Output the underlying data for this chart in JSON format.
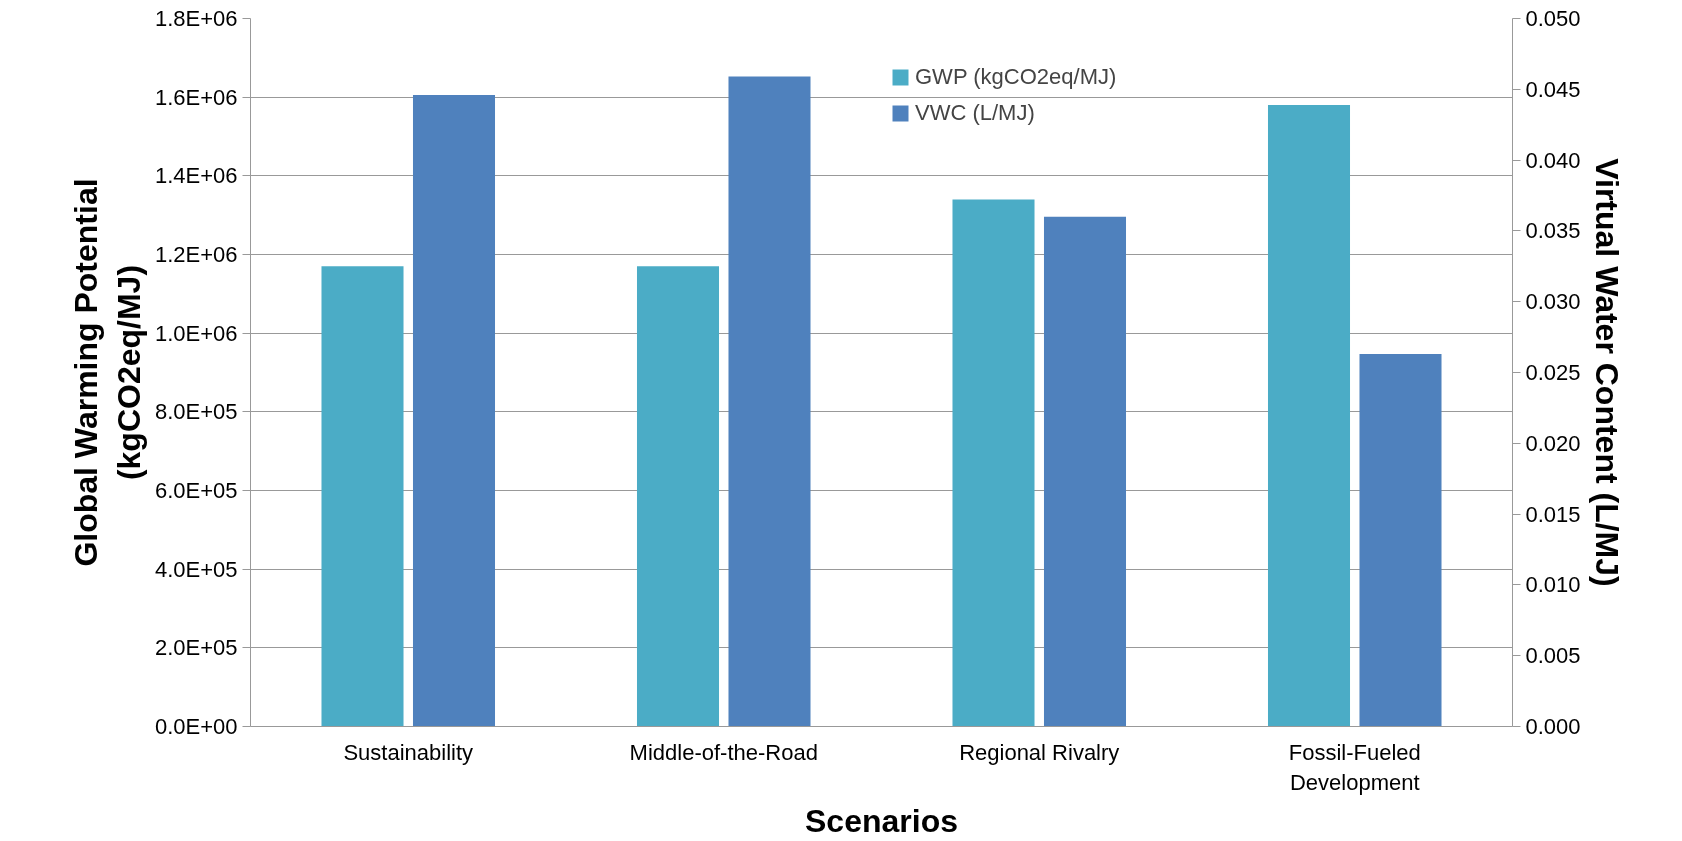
{
  "chart_data": {
    "type": "bar",
    "xlabel": "Scenarios",
    "ylabel": "Global Warming Potential\n(kgCO2eq/MJ)",
    "y2label": "Virtual Water Content (L/MJ)",
    "categories": [
      "Sustainability",
      "Middle-of-the-Road",
      "Regional Rivalry",
      "Fossil-Fueled\nDevelopment"
    ],
    "series": [
      {
        "name": "GWP (kgCO2eq/MJ)",
        "color": "#4bacc6",
        "values": [
          1170000,
          1170000,
          1340000,
          1580000
        ]
      },
      {
        "name": "VWC (L/MJ)",
        "color": "#4f81bd",
        "axis": "y2",
        "values": [
          0.0446,
          0.0459,
          0.036,
          0.0263
        ]
      }
    ],
    "ylim": [
      0,
      1800000
    ],
    "yticks": [
      {
        "value": 0,
        "label": "0.0E+00"
      },
      {
        "value": 200000,
        "label": "2.0E+05"
      },
      {
        "value": 400000,
        "label": "4.0E+05"
      },
      {
        "value": 600000,
        "label": "6.0E+05"
      },
      {
        "value": 800000,
        "label": "8.0E+05"
      },
      {
        "value": 1000000,
        "label": "1.0E+06"
      },
      {
        "value": 1200000,
        "label": "1.2E+06"
      },
      {
        "value": 1400000,
        "label": "1.4E+06"
      },
      {
        "value": 1600000,
        "label": "1.6E+06"
      },
      {
        "value": 1800000,
        "label": "1.8E+06"
      }
    ],
    "y2lim": [
      0,
      0.05
    ],
    "y2ticks": [
      {
        "value": 0,
        "label": "0.000"
      },
      {
        "value": 0.005,
        "label": "0.005"
      },
      {
        "value": 0.01,
        "label": "0.010"
      },
      {
        "value": 0.015,
        "label": "0.015"
      },
      {
        "value": 0.02,
        "label": "0.020"
      },
      {
        "value": 0.025,
        "label": "0.025"
      },
      {
        "value": 0.03,
        "label": "0.030"
      },
      {
        "value": 0.035,
        "label": "0.035"
      },
      {
        "value": 0.04,
        "label": "0.040"
      },
      {
        "value": 0.045,
        "label": "0.045"
      },
      {
        "value": 0.05,
        "label": "0.050"
      }
    ],
    "grid": "y",
    "legend": "top"
  }
}
